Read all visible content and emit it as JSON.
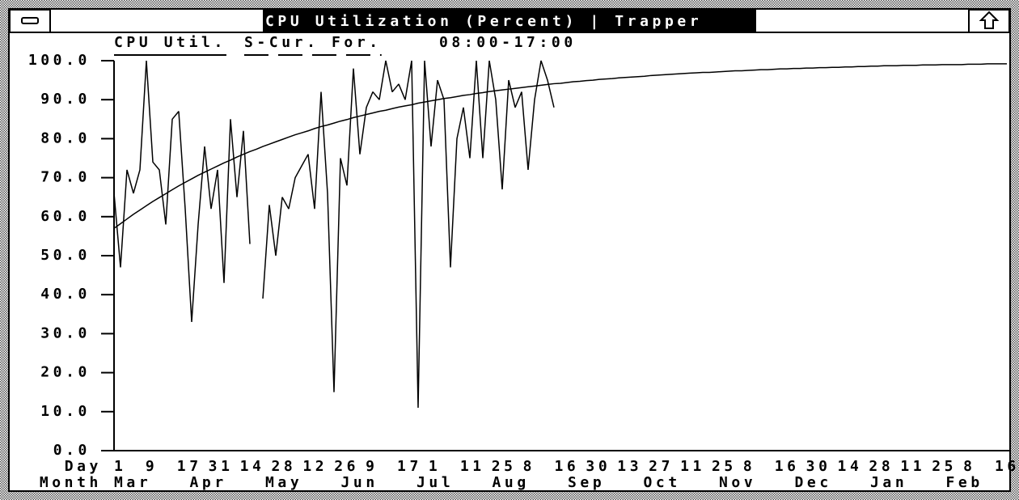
{
  "window": {
    "title": "CPU Utilization (Percent) | Trapper"
  },
  "chart_data": {
    "type": "line",
    "subtitle": "08:00-17:00",
    "legend": "top-left",
    "series": [
      {
        "name": "CPU Util.",
        "color": "#000000",
        "dash": "solid",
        "values": [
          66,
          47,
          72,
          66,
          72,
          100,
          74,
          72,
          58,
          85,
          87,
          62,
          33,
          58,
          78,
          62,
          72,
          43,
          85,
          65,
          82,
          53,
          null,
          39,
          63,
          50,
          65,
          62,
          70,
          73,
          76,
          62,
          92,
          66,
          15,
          75,
          68,
          98,
          76,
          88,
          92,
          90,
          100,
          92,
          94,
          90,
          100,
          11,
          100,
          78,
          95,
          90,
          47,
          80,
          88,
          75,
          100,
          75,
          100,
          90,
          67,
          95,
          88,
          92,
          72,
          90,
          100,
          95,
          88,
          null,
          null,
          null,
          null,
          null,
          null,
          null,
          null,
          null,
          null,
          null,
          null,
          null,
          null,
          null,
          null,
          null,
          null,
          null,
          null,
          null,
          null,
          null,
          null,
          null,
          null,
          null,
          null,
          null,
          null,
          null,
          null,
          null,
          null,
          null,
          null,
          null,
          null,
          null,
          null,
          null,
          null,
          null,
          null,
          null,
          null,
          null,
          null,
          null,
          null,
          null,
          null,
          null,
          null,
          null,
          null,
          null,
          null,
          null,
          null,
          null,
          null,
          null,
          null,
          null,
          null,
          null,
          null,
          null,
          null
        ]
      },
      {
        "name": "S-Cur. For.",
        "color": "#000000",
        "dash": "dashed",
        "values": [
          57.0,
          58.2,
          59.4,
          60.6,
          61.7,
          62.8,
          63.9,
          64.9,
          65.9,
          66.9,
          67.9,
          68.8,
          69.7,
          70.6,
          71.4,
          72.2,
          73.0,
          73.8,
          74.5,
          75.3,
          76.0,
          76.7,
          77.3,
          78.0,
          78.6,
          79.2,
          79.8,
          80.4,
          81.0,
          81.5,
          82.0,
          82.6,
          83.1,
          83.5,
          84.0,
          84.5,
          84.9,
          85.4,
          85.8,
          86.2,
          86.6,
          87.0,
          87.3,
          87.7,
          88.1,
          88.4,
          88.7,
          89.1,
          89.4,
          89.7,
          90.0,
          90.3,
          90.5,
          90.8,
          91.1,
          91.3,
          91.6,
          91.8,
          92.1,
          92.3,
          92.5,
          92.7,
          92.9,
          93.1,
          93.3,
          93.5,
          93.7,
          93.9,
          94.1,
          94.2,
          94.4,
          94.6,
          94.7,
          94.9,
          95.0,
          95.2,
          95.3,
          95.4,
          95.6,
          95.7,
          95.8,
          95.9,
          96.0,
          96.2,
          96.3,
          96.4,
          96.5,
          96.6,
          96.7,
          96.8,
          96.9,
          97.0,
          97.0,
          97.1,
          97.2,
          97.3,
          97.4,
          97.4,
          97.5,
          97.6,
          97.7,
          97.7,
          97.8,
          97.9,
          97.9,
          98.0,
          98.0,
          98.1,
          98.1,
          98.2,
          98.2,
          98.3,
          98.3,
          98.4,
          98.4,
          98.5,
          98.5,
          98.6,
          98.6,
          98.7,
          98.7,
          98.7,
          98.8,
          98.8,
          98.8,
          98.9,
          98.9,
          98.9,
          99.0,
          99.0,
          99.0,
          99.0,
          99.1,
          99.1,
          99.1,
          99.2,
          99.2,
          99.2,
          99.2
        ]
      }
    ],
    "ylim": [
      0,
      100
    ],
    "yticks": [
      {
        "value": 0,
        "label": "0.0"
      },
      {
        "value": 10,
        "label": "10.0"
      },
      {
        "value": 20,
        "label": "20.0"
      },
      {
        "value": 30,
        "label": "30.0"
      },
      {
        "value": 40,
        "label": "40.0"
      },
      {
        "value": 50,
        "label": "50.0"
      },
      {
        "value": 60,
        "label": "60.0"
      },
      {
        "value": 70,
        "label": "70.0"
      },
      {
        "value": 80,
        "label": "80.0"
      },
      {
        "value": 90,
        "label": "90.0"
      },
      {
        "value": 100,
        "label": "100.0"
      }
    ],
    "x_row_labels": [
      "Day",
      "Month"
    ],
    "day_labels": [
      "1",
      "9",
      "17",
      "31",
      "14",
      "28",
      "12",
      "26",
      "9",
      "17",
      "1",
      "11",
      "25",
      "8",
      "16",
      "30",
      "13",
      "27",
      "11",
      "25",
      "8",
      "16",
      "30",
      "14",
      "28",
      "11",
      "25",
      "8",
      "16"
    ],
    "month_labels": [
      "Mar",
      "Apr",
      "May",
      "Jun",
      "Jul",
      "Aug",
      "Sep",
      "Oct",
      "Nov",
      "Dec",
      "Jan",
      "Feb"
    ]
  }
}
